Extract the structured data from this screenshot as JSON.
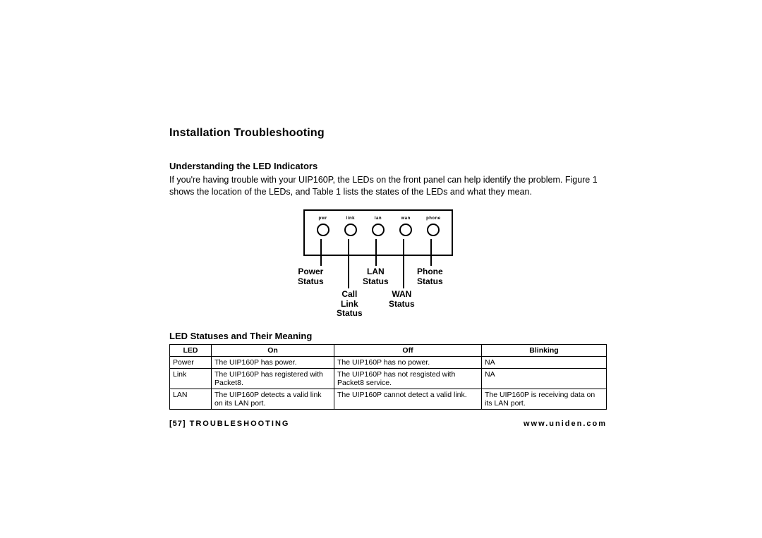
{
  "title": "Installation Troubleshooting",
  "section1": {
    "heading": "Understanding the LED Indicators",
    "text": "If you're having trouble with your UIP160P, the LEDs on the front panel can help identify the problem. Figure 1 shows the location of the LEDs, and Table 1 lists the states of the LEDs and what they mean."
  },
  "diagram": {
    "leds": [
      {
        "top": "pwr"
      },
      {
        "top": "link"
      },
      {
        "top": "lan"
      },
      {
        "top": "wan"
      },
      {
        "top": "phone"
      }
    ],
    "callouts": {
      "power": "Power\nStatus",
      "call": "Call\nLink\nStatus",
      "lan": "LAN\nStatus",
      "wan": "WAN\nStatus",
      "phone": "Phone\nStatus"
    }
  },
  "tableHeading": "LED Statuses and Their Meaning",
  "table": {
    "columns": [
      "LED",
      "On",
      "Off",
      "Blinking"
    ],
    "rows": [
      [
        "Power",
        "The UIP160P has power.",
        "The UIP160P has no power.",
        "NA"
      ],
      [
        "Link",
        "The UIP160P has registered with Packet8.",
        "The UIP160P has not resgisted with Packet8 service.",
        "NA"
      ],
      [
        "LAN",
        "The UIP160P detects a valid link on its LAN port.",
        "The UIP160P cannot detect a valid link.",
        "The UIP160P is receiving data on its LAN port."
      ]
    ]
  },
  "footer": {
    "page": "[57]",
    "left": "TROUBLESHOOTING",
    "right": "www.uniden.com"
  },
  "colors": {
    "text": "#000000",
    "background": "#ffffff",
    "border": "#000000"
  }
}
